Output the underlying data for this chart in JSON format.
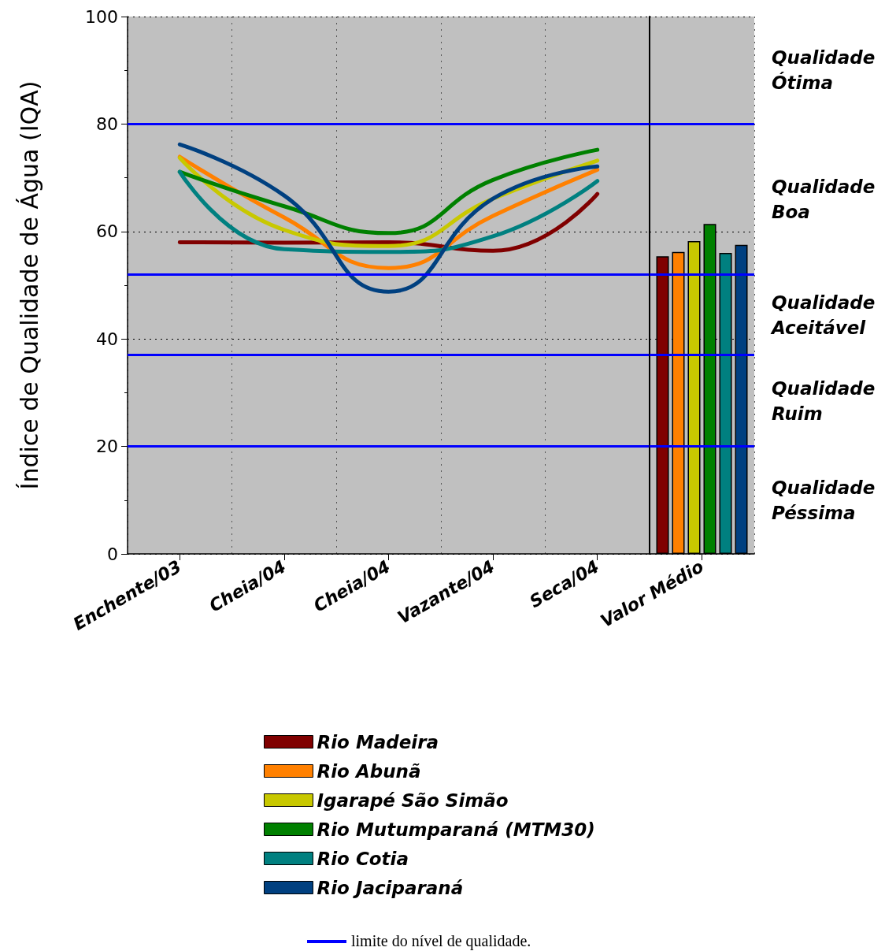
{
  "chart_data": [
    {
      "type": "line",
      "ylabel": "Índice de Qualidade de Água (IQA)",
      "categories": [
        "Enchente/03",
        "Cheia/04",
        "Cheia/04",
        "Vazante/04",
        "Seca/04"
      ],
      "series": [
        {
          "name": "Rio Madeira",
          "color": "#800000",
          "values": [
            58.0,
            57.9,
            58.0,
            56.4,
            67.0
          ]
        },
        {
          "name": "Rio Abunã",
          "color": "#ff8000",
          "values": [
            73.9,
            62.6,
            53.2,
            62.9,
            71.5
          ]
        },
        {
          "name": "Igarapé São Simão",
          "color": "#c8c800",
          "values": [
            73.7,
            60.3,
            57.3,
            66.1,
            73.2
          ]
        },
        {
          "name": "Rio Mutumparaná (MTM30)",
          "color": "#008000",
          "values": [
            71.1,
            64.7,
            59.7,
            69.6,
            75.2
          ]
        },
        {
          "name": "Rio Cotia",
          "color": "#008080",
          "values": [
            71.1,
            56.7,
            56.2,
            59.1,
            69.4
          ]
        },
        {
          "name": "Rio Jaciparaná",
          "color": "#004080",
          "values": [
            76.2,
            66.7,
            48.8,
            66.1,
            72.1
          ]
        }
      ],
      "ylim": [
        0,
        100
      ],
      "yticks": [
        0,
        20,
        40,
        60,
        80,
        100
      ],
      "grid": true,
      "legend": "bottom",
      "marker": "none",
      "line_style": "solid",
      "ref_lines": [
        {
          "axis": "y",
          "value": 80,
          "color": "#0000ff"
        },
        {
          "axis": "y",
          "value": 52,
          "color": "#0000ff"
        },
        {
          "axis": "y",
          "value": 37,
          "color": "#0000ff"
        },
        {
          "axis": "y",
          "value": 20,
          "color": "#0000ff"
        }
      ],
      "annotations": [
        "limite do nível de qualidade."
      ]
    },
    {
      "type": "bar",
      "categories": [
        "Valor Médio"
      ],
      "series": [
        {
          "color": "#800000",
          "values": [
            55.4
          ]
        },
        {
          "color": "#ff8000",
          "values": [
            56.2
          ]
        },
        {
          "color": "#c8c800",
          "values": [
            58.2
          ]
        },
        {
          "color": "#008000",
          "values": [
            61.4
          ]
        },
        {
          "color": "#008080",
          "values": [
            56.0
          ]
        },
        {
          "color": "#004080",
          "values": [
            57.5
          ]
        }
      ],
      "ylim": [
        0,
        100
      ],
      "yticks": [
        0,
        20,
        40,
        60,
        80,
        100
      ],
      "tick_labels": "x",
      "grid": true,
      "ref_lines": [
        {
          "axis": "y",
          "value": 80,
          "color": "#0000ff"
        },
        {
          "axis": "y",
          "value": 52,
          "color": "#0000ff"
        },
        {
          "axis": "y",
          "value": 37,
          "color": "#0000ff"
        },
        {
          "axis": "y",
          "value": 20,
          "color": "#0000ff"
        }
      ],
      "annotations": [
        "Qualidade Ótima",
        "Qualidade Boa",
        "Qualidade Aceitável",
        "Qualidade Ruim",
        "Qualidade Péssima"
      ]
    }
  ]
}
